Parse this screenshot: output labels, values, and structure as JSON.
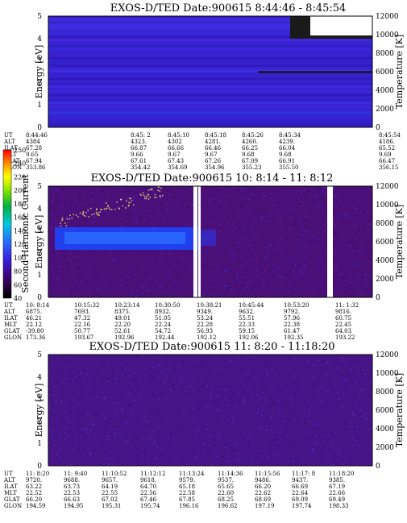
{
  "panels": [
    {
      "title": "EXOS-D/TED   Date:900615   8:44:46 - 8:45:54",
      "ylabel": "Energy [eV]",
      "y2label": "Temperature [K]",
      "yticks": [
        "0",
        "1",
        "2",
        "3",
        "4",
        "5"
      ],
      "y2ticks": [
        "0",
        "2000",
        "4000",
        "6000",
        "8000",
        "10000",
        "12000"
      ],
      "orbit_labels": [
        "UT",
        "ALT",
        "ILAT",
        "MLT",
        "GLAT",
        "GLON"
      ],
      "orbit_columns": [
        [
          "8:44:46",
          "4384",
          "67.28",
          "9.65",
          "67.94",
          "353.86"
        ],
        [
          "8:45: 2",
          "4323.",
          "66.87",
          "9.66",
          "67.61",
          "354.42"
        ],
        [
          "8:45:10",
          "4302",
          "66.66",
          "9.67",
          "67.43",
          "354.69"
        ],
        [
          "8:45:18",
          "4281.",
          "66.46",
          "9.67",
          "67.26",
          "354.96"
        ],
        [
          "8:45:26",
          "4260.",
          "66.25",
          "9.68",
          "67.09",
          "355.23"
        ],
        [
          "8:45:34",
          "4239.",
          "66.04",
          "9.68",
          "66.91",
          "355.50"
        ],
        [
          "8:45:54",
          "4186.",
          "65.52",
          "9.69",
          "66.47",
          "356.15"
        ]
      ]
    },
    {
      "title": "EXOS-D/TED   Date:900615   10: 8:14 - 11: 8:12",
      "ylabel": "Energy [eV]",
      "y2label": "Temperature [K]",
      "yticks": [
        "0",
        "1",
        "2",
        "3",
        "4",
        "5"
      ],
      "y2ticks": [
        "0",
        "2000",
        "4000",
        "6000",
        "8000",
        "10000",
        "12000"
      ],
      "orbit_labels": [
        "UT",
        "ALT",
        "ILAT",
        "MLT",
        "GLAT",
        "GLON"
      ],
      "orbit_columns": [
        [
          "10: 8:14",
          "6875.",
          "46.21",
          "22.12",
          "-39.80",
          "173.36"
        ],
        [
          "10:15:32",
          "7693.",
          "47.32",
          "22.16",
          "50.77",
          "193.67"
        ],
        [
          "10:23:14",
          "8375.",
          "49.01",
          "22.20",
          "52.61",
          "192.96"
        ],
        [
          "10:30:50",
          "8932.",
          "51.05",
          "22.24",
          "54.72",
          "192.44"
        ],
        [
          "10:38:21",
          "9349.",
          "53.24",
          "22.28",
          "56.93",
          "192.12"
        ],
        [
          "10:45:44",
          "9632.",
          "55.51",
          "22.33",
          "59.15",
          "192.06"
        ],
        [
          "10:53:20",
          "9792.",
          "57.96",
          "22.38",
          "61.47",
          "192.35"
        ],
        [
          "11: 1:32",
          "9816.",
          "60.75",
          "22.45",
          "64.03",
          "193.22"
        ]
      ]
    },
    {
      "title": "EXOS-D/TED   Date:900615   11: 8:20 - 11:18:20",
      "ylabel": "Energy [eV]",
      "y2label": "Temperature [K]",
      "yticks": [
        "0",
        "1",
        "2",
        "3",
        "4",
        "5"
      ],
      "y2ticks": [
        "0",
        "2000",
        "4000",
        "6000",
        "8000",
        "10000",
        "12000"
      ],
      "orbit_labels": [
        "UT",
        "ALT",
        "ILAT",
        "MLT",
        "GLAT",
        "GLON"
      ],
      "orbit_columns": [
        [
          "11: 8:20",
          "9720.",
          "63.22",
          "22.52",
          "66.20",
          "194.59"
        ],
        [
          "11: 9:40",
          "9688.",
          "63.73",
          "22.53",
          "66.63",
          "194.95"
        ],
        [
          "11:10:52",
          "9657.",
          "64.19",
          "22.55",
          "67.02",
          "195.31"
        ],
        [
          "11:12:12",
          "9618.",
          "64.70",
          "22.56",
          "67.46",
          "195.74"
        ],
        [
          "11:13:24",
          "9579.",
          "65.18",
          "22.58",
          "67.85",
          "196.16"
        ],
        [
          "11:14:36",
          "9537.",
          "65.65",
          "22.60",
          "68.25",
          "196.62"
        ],
        [
          "11:15:56",
          "9486.",
          "66.20",
          "22.62",
          "68.69",
          "197.19"
        ],
        [
          "11:17: 8",
          "9437.",
          "66.69",
          "22.64",
          "69.09",
          "197.74"
        ],
        [
          "11:18:20",
          "9385.",
          "67.19",
          "22.66",
          "69.49",
          "198.33"
        ]
      ]
    }
  ],
  "colorbar": {
    "label": "Second Harmonic Current",
    "ticks": [
      "40",
      "60",
      "80",
      "100",
      "120",
      "140",
      "160",
      "180",
      "200",
      "220",
      "240",
      "250"
    ]
  },
  "chart_data": [
    {
      "type": "heatmap",
      "title": "EXOS-D/TED   Date:900615   8:44:46 - 8:45:54",
      "ylabel": "Energy [eV]",
      "y2label": "Temperature [K]",
      "ylim": [
        0,
        5
      ],
      "y2lim": [
        0,
        12000
      ],
      "dominant_level": 60
    },
    {
      "type": "heatmap",
      "title": "EXOS-D/TED   Date:900615   10: 8:14 - 11: 8:12",
      "ylabel": "Energy [eV]",
      "y2label": "Temperature [K]",
      "ylim": [
        0,
        5
      ],
      "y2lim": [
        0,
        12000
      ],
      "dominant_level": 50,
      "enhanced_band_energy": [
        2.0,
        3.0
      ],
      "enhanced_band_level": 90
    },
    {
      "type": "heatmap",
      "title": "EXOS-D/TED   Date:900615   11: 8:20 - 11:18:20",
      "ylabel": "Energy [eV]",
      "y2label": "Temperature [K]",
      "ylim": [
        0,
        5
      ],
      "y2lim": [
        0,
        12000
      ],
      "dominant_level": 55
    }
  ]
}
